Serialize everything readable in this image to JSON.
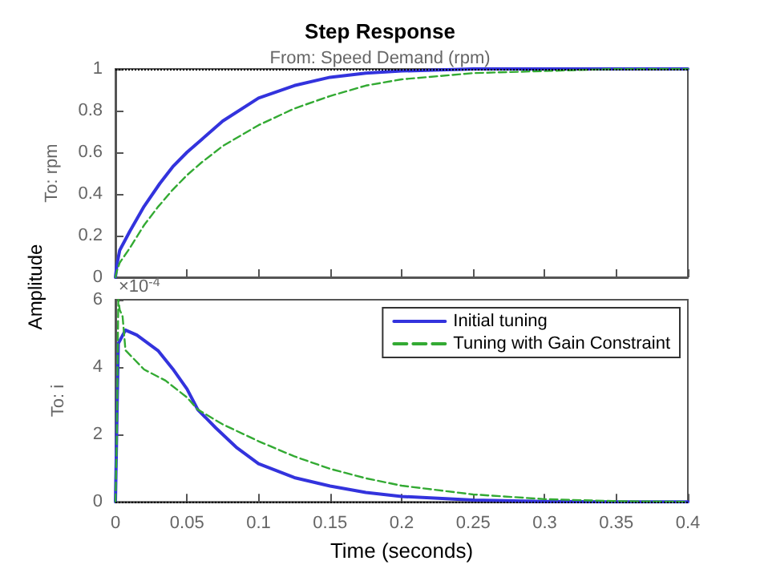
{
  "chart_data": [
    {
      "type": "line",
      "title": "Step Response",
      "subtitle": "From: Speed Demand (rpm)",
      "ylabel": "To: rpm",
      "annotations": [
        "Amplitude"
      ],
      "xlim": [
        0,
        0.4
      ],
      "xticks": [
        0,
        0.05,
        0.1,
        0.15,
        0.2,
        0.25,
        0.3,
        0.35,
        0.4
      ],
      "ylim": [
        0,
        1
      ],
      "yticks": [
        0,
        0.2,
        0.4,
        0.6,
        0.8,
        1
      ],
      "tick_labels": "y",
      "grid": false,
      "legend": false,
      "marker": "none",
      "ref_lines": [
        {
          "axis": "y",
          "value": 1,
          "color": "#000000",
          "line_style": "dotted"
        }
      ],
      "series": [
        {
          "color": "#3333dd",
          "line_style": "solid",
          "x": [
            0,
            0.001,
            0.003,
            0.01,
            0.02,
            0.031,
            0.04,
            0.05,
            0.06,
            0.075,
            0.1,
            0.125,
            0.15,
            0.175,
            0.2,
            0.25,
            0.3,
            0.35,
            0.4
          ],
          "values": [
            0,
            0.06,
            0.13,
            0.22,
            0.34,
            0.45,
            0.53,
            0.6,
            0.66,
            0.75,
            0.86,
            0.92,
            0.96,
            0.98,
            0.99,
            1,
            1,
            1,
            1
          ]
        },
        {
          "color": "#33aa33",
          "line_style": "dashed",
          "x": [
            0,
            0.001,
            0.003,
            0.01,
            0.02,
            0.03,
            0.04,
            0.05,
            0.06,
            0.075,
            0.1,
            0.125,
            0.15,
            0.175,
            0.2,
            0.25,
            0.3,
            0.35,
            0.4
          ],
          "values": [
            0,
            0.03,
            0.07,
            0.14,
            0.25,
            0.34,
            0.42,
            0.49,
            0.55,
            0.63,
            0.73,
            0.81,
            0.87,
            0.92,
            0.95,
            0.98,
            0.99,
            1,
            1
          ]
        }
      ]
    },
    {
      "type": "line",
      "xlabel": "Time (seconds)",
      "ylabel": "To: i",
      "annotations": [
        "×10$^{-4}$"
      ],
      "xlim": [
        0,
        0.4
      ],
      "xticks": [
        0,
        0.05,
        0.1,
        0.15,
        0.2,
        0.25,
        0.3,
        0.35,
        0.4
      ],
      "ylim": [
        0,
        6
      ],
      "yticks": [
        0,
        2,
        4,
        6
      ],
      "grid": false,
      "legend": "top right",
      "marker": "none",
      "ref_lines": [
        {
          "axis": "y",
          "value": 0,
          "color": "#000000",
          "line_style": "dotted"
        }
      ],
      "series": [
        {
          "name": "Initial tuning",
          "color": "#3333dd",
          "line_style": "solid",
          "x": [
            0,
            0.002,
            0.007,
            0.015,
            0.03,
            0.04,
            0.05,
            0.0575,
            0.07,
            0.085,
            0.1,
            0.125,
            0.15,
            0.175,
            0.2,
            0.25,
            0.3,
            0.35,
            0.4
          ],
          "values": [
            0,
            4.7,
            5.1,
            4.95,
            4.48,
            3.95,
            3.35,
            2.74,
            2.2,
            1.6,
            1.13,
            0.72,
            0.47,
            0.28,
            0.16,
            0.05,
            0.01,
            0,
            0
          ]
        },
        {
          "name": "Tuning with Gain Constraint",
          "color": "#33aa33",
          "line_style": "dashed",
          "x": [
            0,
            0.001,
            0.002,
            0.003,
            0.005,
            0.007,
            0.02,
            0.035,
            0.05,
            0.0575,
            0.075,
            0.1,
            0.125,
            0.15,
            0.175,
            0.2,
            0.25,
            0.3,
            0.35,
            0.4
          ],
          "values": [
            0,
            2,
            6,
            5.7,
            5.5,
            4.5,
            3.93,
            3.6,
            3.1,
            2.74,
            2.3,
            1.8,
            1.35,
            0.98,
            0.7,
            0.48,
            0.22,
            0.08,
            0.02,
            0
          ]
        }
      ]
    }
  ]
}
